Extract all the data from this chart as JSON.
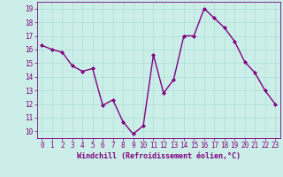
{
  "x": [
    0,
    1,
    2,
    3,
    4,
    5,
    6,
    7,
    8,
    9,
    10,
    11,
    12,
    13,
    14,
    15,
    16,
    17,
    18,
    19,
    20,
    21,
    22,
    23
  ],
  "y": [
    16.3,
    16.0,
    15.8,
    14.8,
    14.4,
    14.6,
    11.9,
    12.3,
    10.7,
    9.8,
    10.4,
    15.6,
    12.8,
    13.8,
    17.0,
    17.0,
    19.0,
    18.3,
    17.6,
    16.6,
    15.1,
    14.3,
    13.0,
    12.0
  ],
  "line_color": "#800080",
  "marker": "D",
  "marker_size": 2.0,
  "bg_color": "#cceee8",
  "grid_color": "#aaddd8",
  "xlabel": "Windchill (Refroidissement éolien,°C)",
  "xlabel_fontsize": 6.0,
  "tick_fontsize": 5.5,
  "ylim": [
    9.5,
    19.5
  ],
  "yticks": [
    10,
    11,
    12,
    13,
    14,
    15,
    16,
    17,
    18,
    19
  ],
  "xlim": [
    -0.5,
    23.5
  ],
  "xticks": [
    0,
    1,
    2,
    3,
    4,
    5,
    6,
    7,
    8,
    9,
    10,
    11,
    12,
    13,
    14,
    15,
    16,
    17,
    18,
    19,
    20,
    21,
    22,
    23
  ],
  "line_width": 1.0
}
